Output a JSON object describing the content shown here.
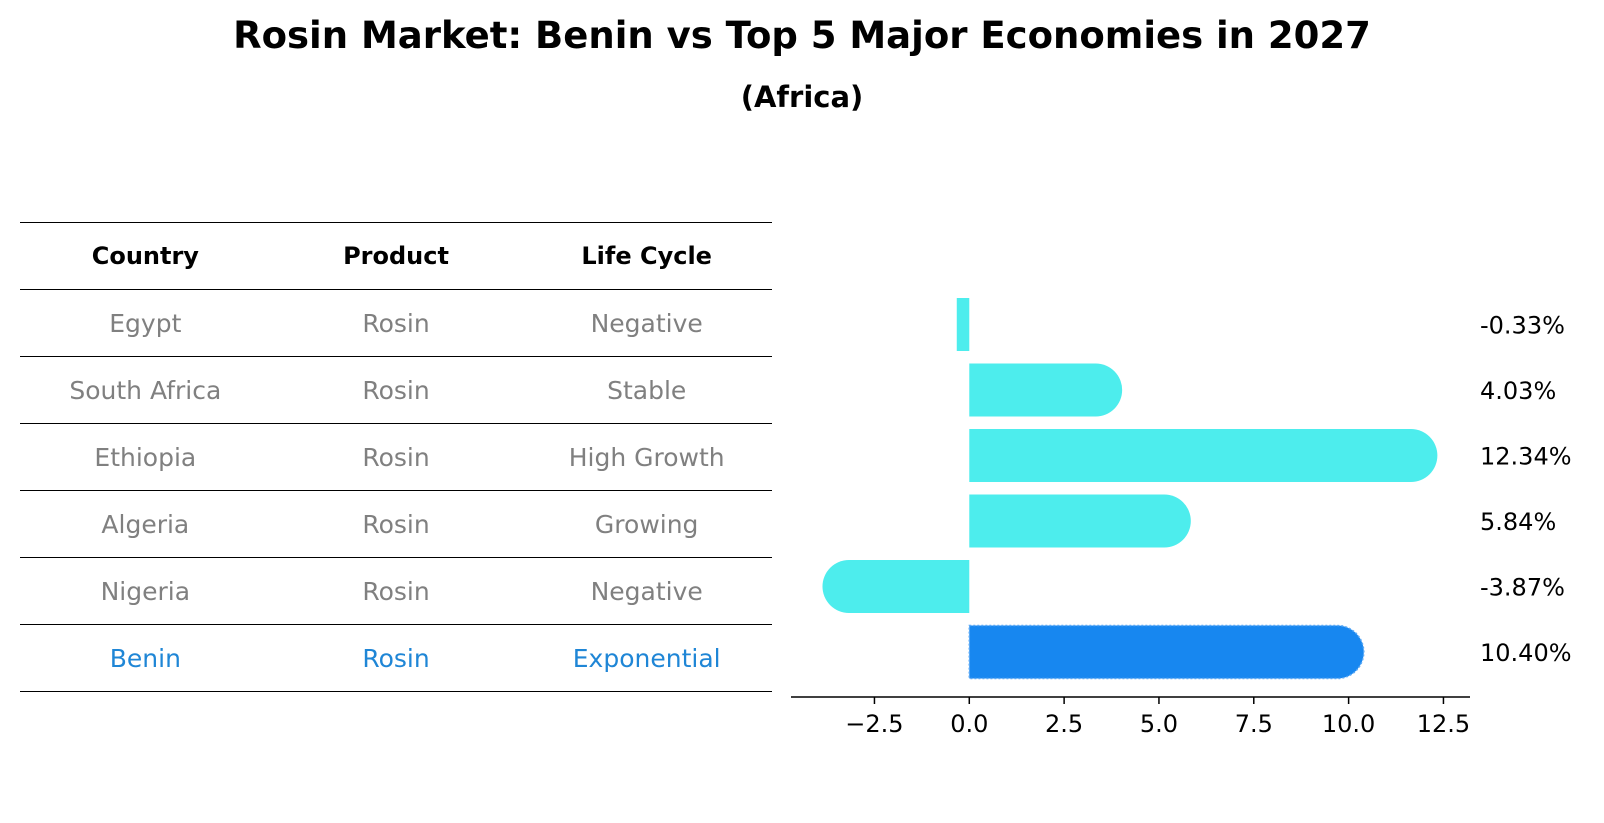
{
  "title": "Rosin Market: Benin vs Top 5 Major Economies in 2027",
  "subtitle": "(Africa)",
  "table": {
    "headers": [
      "Country",
      "Product",
      "Life Cycle"
    ],
    "rows": [
      [
        "Egypt",
        "Rosin",
        "Negative"
      ],
      [
        "South Africa",
        "Rosin",
        "Stable"
      ],
      [
        "Ethiopia",
        "Rosin",
        "High Growth"
      ],
      [
        "Algeria",
        "Rosin",
        "Growing"
      ],
      [
        "Nigeria",
        "Rosin",
        "Negative"
      ],
      [
        "Benin",
        "Rosin",
        "Exponential"
      ]
    ]
  },
  "chart_data": {
    "type": "bar",
    "orientation": "horizontal",
    "categories": [
      "Egypt",
      "South Africa",
      "Ethiopia",
      "Algeria",
      "Nigeria",
      "Benin"
    ],
    "values": [
      -0.33,
      4.03,
      12.34,
      5.84,
      -3.87,
      10.4
    ],
    "value_labels": [
      "-0.33%",
      "4.03%",
      "12.34%",
      "5.84%",
      "-3.87%",
      "10.40%"
    ],
    "xlim": [
      -4.7,
      13.2
    ],
    "xticks": [
      -2.5,
      0.0,
      2.5,
      5.0,
      7.5,
      10.0,
      12.5
    ],
    "xtick_labels": [
      "−2.5",
      "0.0",
      "2.5",
      "5.0",
      "7.5",
      "10.0",
      "12.5"
    ],
    "colors": {
      "default": "#4deded",
      "highlight": "#1787f0"
    },
    "highlight": "Benin"
  }
}
